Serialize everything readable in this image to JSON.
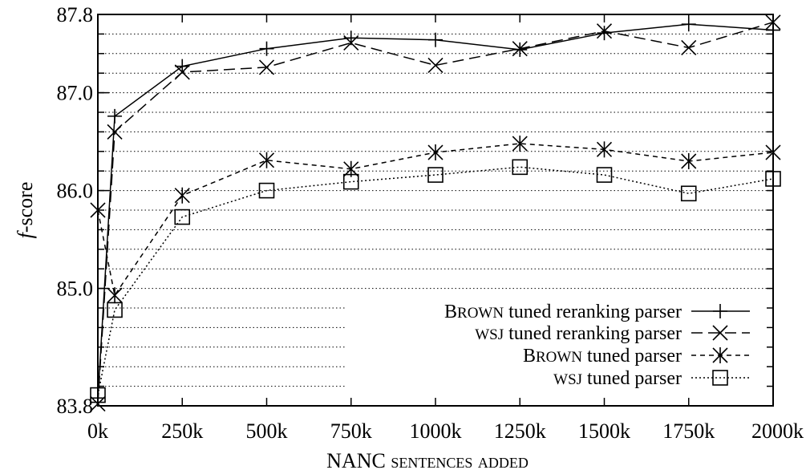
{
  "chart_data": {
    "type": "line",
    "xlabel": "NANC sentences added",
    "ylabel_italic": "f",
    "ylabel_rest": "-score",
    "x": [
      0,
      50,
      250,
      500,
      750,
      1000,
      1250,
      1500,
      1750,
      2000
    ],
    "x_ticks": [
      0,
      250,
      500,
      750,
      1000,
      1250,
      1500,
      1750,
      2000
    ],
    "x_tick_labels": [
      "0k",
      "250k",
      "500k",
      "750k",
      "1000k",
      "1250k",
      "1500k",
      "1750k",
      "2000k"
    ],
    "y_tick_labels": [
      {
        "value": 83.8,
        "label": "83.8"
      },
      {
        "value": 85.0,
        "label": "85.0"
      },
      {
        "value": 86.0,
        "label": "86.0"
      },
      {
        "value": 87.0,
        "label": "87.0"
      },
      {
        "value": 87.8,
        "label": "87.8"
      }
    ],
    "xlim": [
      0,
      2000
    ],
    "ylim": [
      83.8,
      87.8
    ],
    "grid": "horizontal dotted",
    "legend_position": "bottom-right",
    "series": [
      {
        "name": "BROWN tuned reranking parser",
        "legend_prefix": "B",
        "legend_caps": "ROWN",
        "legend_rest": " tuned reranking parser",
        "marker": "plus",
        "dash": "solid",
        "values": [
          83.88,
          86.76,
          87.27,
          87.45,
          87.56,
          87.54,
          87.44,
          87.61,
          87.7,
          87.64
        ]
      },
      {
        "name": "WSJ tuned reranking parser",
        "legend_prefix": "",
        "legend_caps": "WSJ",
        "legend_rest": " tuned reranking parser",
        "marker": "x",
        "dash": "long",
        "values": [
          83.82,
          86.6,
          87.21,
          87.26,
          87.51,
          87.28,
          87.45,
          87.63,
          87.46,
          87.72
        ]
      },
      {
        "name": "BROWN tuned parser",
        "legend_prefix": "B",
        "legend_caps": "ROWN",
        "legend_rest": " tuned parser",
        "marker": "star",
        "dash": "short",
        "values": [
          85.8,
          84.93,
          85.95,
          86.31,
          86.22,
          86.39,
          86.48,
          86.42,
          86.3,
          86.39
        ]
      },
      {
        "name": "WSJ tuned parser",
        "legend_prefix": "",
        "legend_caps": "WSJ",
        "legend_rest": " tuned parser",
        "marker": "square",
        "dash": "dotted",
        "values": [
          83.91,
          84.78,
          85.73,
          86.0,
          86.09,
          86.16,
          86.24,
          86.16,
          85.97,
          86.12
        ]
      }
    ]
  }
}
